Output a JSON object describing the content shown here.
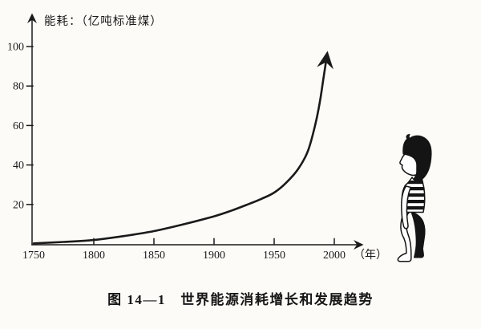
{
  "figure": {
    "y_axis_title": "能耗：（亿吨标准煤）",
    "x_axis_unit": "（年）",
    "caption": "图 14—1　世界能源消耗增长和发展趋势",
    "ink_color": "#1a1a1a",
    "paper_color": "#fcfbf7",
    "illustration": "child-in-striped-shirt-looking-at-curve"
  },
  "chart_data": {
    "type": "line",
    "title": "图 14—1　世界能源消耗增长和发展趋势",
    "xlabel": "年",
    "ylabel": "能耗（亿吨标准煤）",
    "x_ticks": [
      "1750",
      "1800",
      "1850",
      "1900",
      "1950",
      "2000"
    ],
    "y_ticks": [
      "20",
      "40",
      "60",
      "80",
      "100"
    ],
    "xlim": [
      1750,
      2015
    ],
    "ylim": [
      0,
      120
    ],
    "grid": false,
    "legend": "none",
    "curve_ends_in_arrow": true,
    "series": [
      {
        "name": "世界能源消耗",
        "points": [
          [
            1750,
            0.3
          ],
          [
            1775,
            1
          ],
          [
            1800,
            2
          ],
          [
            1825,
            4
          ],
          [
            1850,
            6.5
          ],
          [
            1875,
            10
          ],
          [
            1900,
            14
          ],
          [
            1915,
            17
          ],
          [
            1930,
            20.5
          ],
          [
            1940,
            23
          ],
          [
            1950,
            26
          ],
          [
            1960,
            31
          ],
          [
            1970,
            38
          ],
          [
            1978,
            47
          ],
          [
            1984,
            60
          ],
          [
            1988,
            72
          ],
          [
            1991,
            84
          ],
          [
            1994,
            96
          ]
        ]
      }
    ]
  }
}
